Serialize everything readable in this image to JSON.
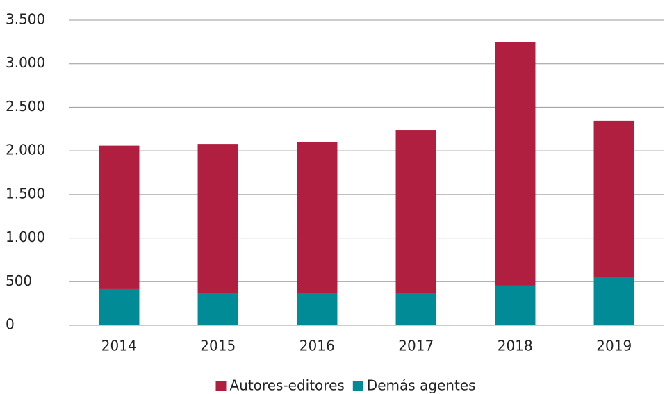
{
  "chart_data": {
    "type": "stacked_bar",
    "categories": [
      "2014",
      "2015",
      "2016",
      "2017",
      "2018",
      "2019"
    ],
    "series": [
      {
        "name": "Autores-editores",
        "color": "#b01f3f",
        "values": [
          1645,
          1710,
          1735,
          1870,
          2790,
          1795
        ]
      },
      {
        "name": "Demás agentes",
        "color": "#008b96",
        "values": [
          415,
          370,
          370,
          370,
          455,
          550
        ]
      }
    ],
    "ylim": [
      0,
      3500
    ],
    "yticks": [
      0,
      500,
      {
        "value": 1000,
        "label": "1.000"
      },
      {
        "value": 1500,
        "label": "1.500"
      },
      {
        "value": 2000,
        "label": "2.000"
      },
      {
        "value": 2500,
        "label": "2.500"
      },
      {
        "value": 3000,
        "label": "3.000"
      },
      {
        "value": 3500,
        "label": "3.500"
      }
    ],
    "grid": true,
    "legend": "bottom"
  }
}
